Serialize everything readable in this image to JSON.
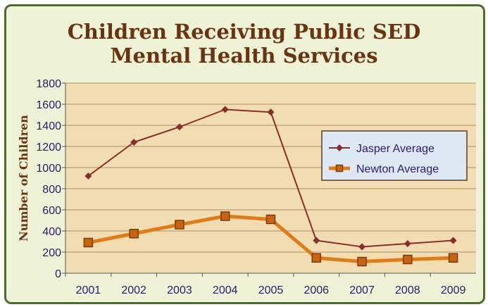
{
  "chart_data": {
    "type": "line",
    "title": "Children Receiving Public SED Mental Health Services",
    "title_lines": [
      "Children Receiving Public SED",
      "Mental Health Services"
    ],
    "ylabel": "Number of Children",
    "xlabel": "",
    "categories": [
      "2001",
      "2002",
      "2003",
      "2004",
      "2005",
      "2006",
      "2007",
      "2008",
      "2009"
    ],
    "ylim": [
      0,
      1800
    ],
    "yticks": [
      0,
      200,
      400,
      600,
      800,
      1000,
      1200,
      1400,
      1600,
      1800
    ],
    "grid": true,
    "legend_position": "right",
    "series": [
      {
        "name": "Jasper Average",
        "values": [
          920,
          1240,
          1385,
          1550,
          1525,
          310,
          250,
          280,
          310
        ],
        "color": "#8b2d2d",
        "marker": "diamond"
      },
      {
        "name": "Newton Average",
        "values": [
          290,
          375,
          460,
          540,
          510,
          145,
          110,
          130,
          145
        ],
        "color": "#e07b1a",
        "marker": "square"
      }
    ]
  },
  "colors": {
    "plot_background": "#f2ddb3",
    "frame_background": "#eef2d6",
    "frame_border": "#4f6b2e",
    "title": "#6b3410",
    "grid": "#b08a6a"
  }
}
